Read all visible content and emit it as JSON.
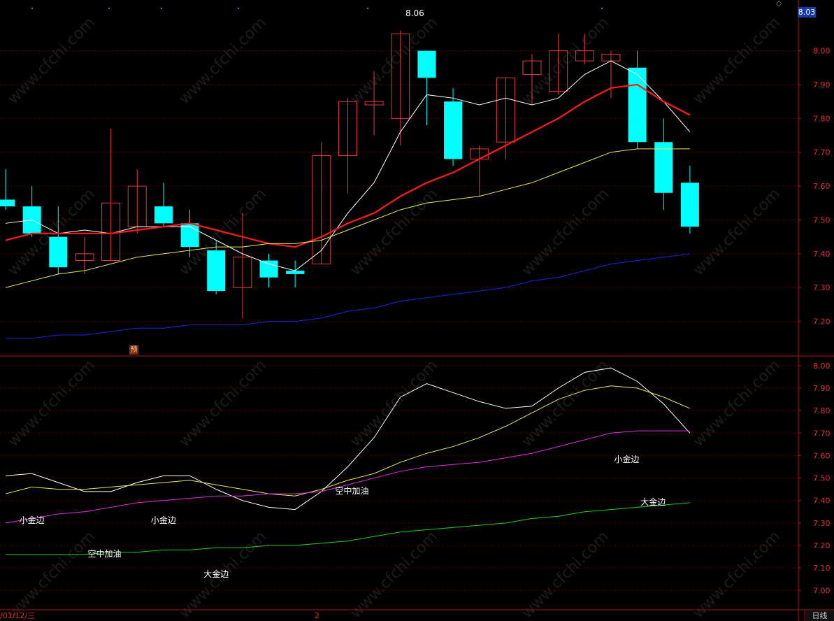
{
  "header": {
    "current_price_badge": "8.03",
    "high_marker": "8.06"
  },
  "footer": {
    "date_left": "/01/12/三",
    "date_mid": "2",
    "period": "日线"
  },
  "badge_label": "预",
  "watermark": "www.cfchi.com",
  "colors": {
    "up_candle": "#e03c3c",
    "down_candle": "#00ffff",
    "ma_white": "#ffffff",
    "ma_red": "#ff1a1a",
    "ma_yellow": "#e8e860",
    "ma_blue": "#1a28d8",
    "ind_magenta": "#e030e0",
    "ind_green": "#20d020",
    "axis": "#a01818",
    "tick": "#e03030"
  },
  "chart_data": [
    {
      "type": "candlestick",
      "title": "",
      "ylim": [
        7.1,
        8.15
      ],
      "y_ticks": [
        "8.00",
        "7.90",
        "7.80",
        "7.70",
        "7.60",
        "7.50",
        "7.40",
        "7.30",
        "7.20"
      ],
      "candles": [
        {
          "o": 7.56,
          "c": 7.54,
          "h": 7.65,
          "l": 7.53
        },
        {
          "o": 7.54,
          "c": 7.46,
          "h": 7.6,
          "l": 7.45
        },
        {
          "o": 7.45,
          "c": 7.36,
          "h": 7.54,
          "l": 7.34
        },
        {
          "o": 7.38,
          "c": 7.4,
          "h": 7.45,
          "l": 7.34
        },
        {
          "o": 7.38,
          "c": 7.55,
          "h": 7.77,
          "l": 7.38
        },
        {
          "o": 7.48,
          "c": 7.6,
          "h": 7.65,
          "l": 7.46
        },
        {
          "o": 7.54,
          "c": 7.49,
          "h": 7.61,
          "l": 7.48
        },
        {
          "o": 7.49,
          "c": 7.42,
          "h": 7.53,
          "l": 7.39
        },
        {
          "o": 7.41,
          "c": 7.29,
          "h": 7.44,
          "l": 7.28
        },
        {
          "o": 7.3,
          "c": 7.39,
          "h": 7.52,
          "l": 7.21
        },
        {
          "o": 7.38,
          "c": 7.33,
          "h": 7.4,
          "l": 7.3
        },
        {
          "o": 7.35,
          "c": 7.34,
          "h": 7.38,
          "l": 7.3
        },
        {
          "o": 7.37,
          "c": 7.69,
          "h": 7.73,
          "l": 7.37
        },
        {
          "o": 7.69,
          "c": 7.85,
          "h": 7.86,
          "l": 7.58
        },
        {
          "o": 7.84,
          "c": 7.85,
          "h": 7.94,
          "l": 7.75
        },
        {
          "o": 7.8,
          "c": 8.05,
          "h": 8.06,
          "l": 7.72
        },
        {
          "o": 8.0,
          "c": 7.92,
          "h": 8.0,
          "l": 7.78
        },
        {
          "o": 7.85,
          "c": 7.68,
          "h": 7.89,
          "l": 7.66
        },
        {
          "o": 7.68,
          "c": 7.71,
          "h": 7.72,
          "l": 7.57
        },
        {
          "o": 7.73,
          "c": 7.92,
          "h": 7.92,
          "l": 7.68
        },
        {
          "o": 7.93,
          "c": 7.97,
          "h": 7.99,
          "l": 7.84
        },
        {
          "o": 7.88,
          "c": 8.0,
          "h": 8.05,
          "l": 7.87
        },
        {
          "o": 7.97,
          "c": 8.0,
          "h": 8.05,
          "l": 7.96
        },
        {
          "o": 7.97,
          "c": 7.99,
          "h": 8.0,
          "l": 7.86
        },
        {
          "o": 7.95,
          "c": 7.73,
          "h": 8.0,
          "l": 7.71
        },
        {
          "o": 7.73,
          "c": 7.58,
          "h": 7.8,
          "l": 7.53
        },
        {
          "o": 7.61,
          "c": 7.48,
          "h": 7.66,
          "l": 7.46
        }
      ],
      "series": [
        {
          "color_key": "ma_white",
          "values": [
            7.49,
            7.5,
            7.46,
            7.47,
            7.46,
            7.48,
            7.48,
            7.48,
            7.44,
            7.4,
            7.37,
            7.35,
            7.41,
            7.52,
            7.61,
            7.76,
            7.87,
            7.86,
            7.84,
            7.86,
            7.84,
            7.86,
            7.93,
            7.97,
            7.93,
            7.85,
            7.76
          ]
        },
        {
          "color_key": "ma_red",
          "values": [
            7.44,
            7.46,
            7.46,
            7.46,
            7.46,
            7.47,
            7.48,
            7.49,
            7.47,
            7.45,
            7.43,
            7.42,
            7.45,
            7.49,
            7.52,
            7.57,
            7.61,
            7.64,
            7.68,
            7.72,
            7.76,
            7.8,
            7.85,
            7.89,
            7.9,
            7.85,
            7.81
          ]
        },
        {
          "color_key": "ma_yellow",
          "values": [
            7.3,
            7.32,
            7.34,
            7.35,
            7.37,
            7.39,
            7.4,
            7.41,
            7.42,
            7.42,
            7.43,
            7.43,
            7.44,
            7.47,
            7.5,
            7.53,
            7.55,
            7.56,
            7.57,
            7.59,
            7.61,
            7.64,
            7.67,
            7.7,
            7.71,
            7.71,
            7.71
          ]
        },
        {
          "color_key": "ma_blue",
          "values": [
            7.15,
            7.15,
            7.16,
            7.16,
            7.17,
            7.18,
            7.18,
            7.19,
            7.19,
            7.19,
            7.2,
            7.2,
            7.21,
            7.23,
            7.24,
            7.26,
            7.27,
            7.28,
            7.29,
            7.3,
            7.32,
            7.33,
            7.35,
            7.37,
            7.38,
            7.39,
            7.4
          ]
        }
      ]
    },
    {
      "type": "line",
      "title": "",
      "ylim": [
        6.92,
        8.04
      ],
      "y_ticks": [
        "8.00",
        "7.90",
        "7.80",
        "7.70",
        "7.60",
        "7.50",
        "7.40",
        "7.30",
        "7.20",
        "7.10",
        "7.00"
      ],
      "series": [
        {
          "color_key": "ma_white",
          "values": [
            7.51,
            7.52,
            7.48,
            7.44,
            7.44,
            7.48,
            7.51,
            7.51,
            7.45,
            7.4,
            7.37,
            7.36,
            7.44,
            7.55,
            7.68,
            7.86,
            7.92,
            7.88,
            7.84,
            7.81,
            7.82,
            7.9,
            7.97,
            7.99,
            7.93,
            7.83,
            7.7
          ]
        },
        {
          "color_key": "ma_yellow",
          "values": [
            7.43,
            7.46,
            7.45,
            7.45,
            7.46,
            7.47,
            7.48,
            7.49,
            7.47,
            7.45,
            7.43,
            7.42,
            7.45,
            7.49,
            7.52,
            7.57,
            7.61,
            7.64,
            7.68,
            7.73,
            7.79,
            7.85,
            7.89,
            7.91,
            7.9,
            7.86,
            7.81
          ]
        },
        {
          "color_key": "ind_magenta",
          "values": [
            7.3,
            7.32,
            7.34,
            7.35,
            7.37,
            7.39,
            7.4,
            7.41,
            7.42,
            7.42,
            7.43,
            7.43,
            7.44,
            7.47,
            7.5,
            7.53,
            7.55,
            7.56,
            7.57,
            7.59,
            7.61,
            7.64,
            7.67,
            7.7,
            7.71,
            7.71,
            7.71
          ]
        },
        {
          "color_key": "ind_green",
          "values": [
            7.16,
            7.16,
            7.16,
            7.16,
            7.17,
            7.17,
            7.18,
            7.18,
            7.19,
            7.19,
            7.2,
            7.2,
            7.21,
            7.22,
            7.24,
            7.26,
            7.27,
            7.28,
            7.29,
            7.3,
            7.32,
            7.33,
            7.35,
            7.36,
            7.37,
            7.38,
            7.39
          ]
        }
      ],
      "annotations": [
        {
          "text": "小金边",
          "x": 1.0,
          "y": 7.3
        },
        {
          "text": "空中加油",
          "x": 3.6,
          "y": 7.15
        },
        {
          "text": "小金边",
          "x": 6.0,
          "y": 7.3
        },
        {
          "text": "大金边",
          "x": 8.0,
          "y": 7.06
        },
        {
          "text": "空中加油",
          "x": 13.0,
          "y": 7.43
        },
        {
          "text": "小金边",
          "x": 23.6,
          "y": 7.57
        },
        {
          "text": "大金边",
          "x": 24.6,
          "y": 7.38
        }
      ]
    }
  ]
}
